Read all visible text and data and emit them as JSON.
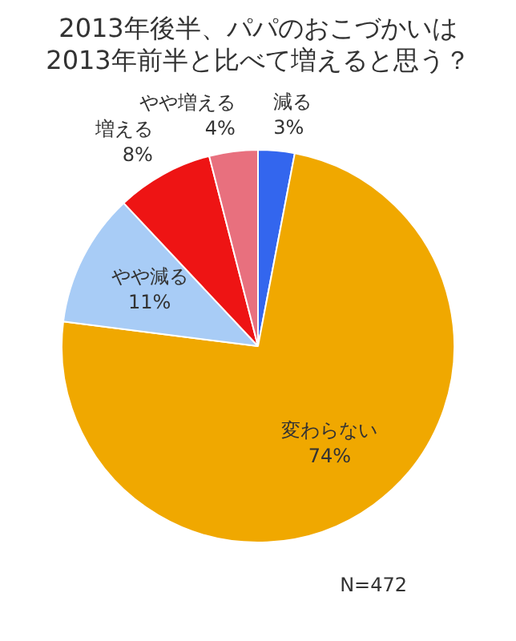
{
  "chart_data": {
    "type": "pie",
    "title": "2013年後半、パパのおこづかいは2013年前半と比べて増えると思う？",
    "categories": [
      "減る",
      "変わらない",
      "やや減る",
      "増える",
      "やや増える"
    ],
    "values": [
      3,
      74,
      11,
      8,
      4
    ],
    "value_labels": [
      "3%",
      "74%",
      "11%",
      "8%",
      "4%"
    ],
    "colors": [
      "#3366ee",
      "#f0a800",
      "#a8ccf6",
      "#ee1414",
      "#e8707e"
    ],
    "legend": false,
    "annotations": [
      "N=472"
    ]
  }
}
